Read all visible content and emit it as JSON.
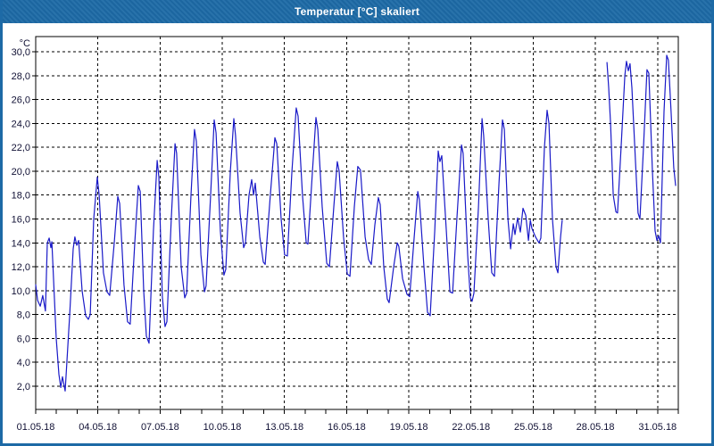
{
  "window": {
    "title": "Temperatur [°C] skaliert",
    "titlebar_color": "#1d6aa6",
    "border_color": "#1d6aa6"
  },
  "chart_data": {
    "type": "line",
    "title": "Temperatur [°C] skaliert",
    "y_unit_label": "°C",
    "line_color": "#1a1ac8",
    "grid": true,
    "grid_style": "dashed",
    "ylim": [
      0.06,
      31.27
    ],
    "xlim_days": [
      0,
      31
    ],
    "y_ticks": [
      {
        "label": "30,0",
        "value": 30
      },
      {
        "label": "28,0",
        "value": 28
      },
      {
        "label": "26,0",
        "value": 26
      },
      {
        "label": "24,0",
        "value": 24
      },
      {
        "label": "22,0",
        "value": 22
      },
      {
        "label": "20,0",
        "value": 20
      },
      {
        "label": "18,0",
        "value": 18
      },
      {
        "label": "16,0",
        "value": 16
      },
      {
        "label": "14,0",
        "value": 14
      },
      {
        "label": "12,0",
        "value": 12
      },
      {
        "label": "10,0",
        "value": 10
      },
      {
        "label": "8,0",
        "value": 8
      },
      {
        "label": "6,0",
        "value": 6
      },
      {
        "label": "4,0",
        "value": 4
      },
      {
        "label": "2,0",
        "value": 2
      }
    ],
    "x_ticks": [
      {
        "label": "01.05.18",
        "day": 0
      },
      {
        "label": "04.05.18",
        "day": 3
      },
      {
        "label": "07.05.18",
        "day": 6
      },
      {
        "label": "10.05.18",
        "day": 9
      },
      {
        "label": "13.05.18",
        "day": 12
      },
      {
        "label": "16.05.18",
        "day": 15
      },
      {
        "label": "19.05.18",
        "day": 18
      },
      {
        "label": "22.05.18",
        "day": 21
      },
      {
        "label": "25.05.18",
        "day": 24
      },
      {
        "label": "28.05.18",
        "day": 27
      },
      {
        "label": "31.05.18",
        "day": 30
      }
    ],
    "x_minor_tick_every_days": 1,
    "segments": [
      {
        "points": [
          [
            0.0,
            10.5
          ],
          [
            0.09,
            9.2
          ],
          [
            0.22,
            8.7
          ],
          [
            0.34,
            9.6
          ],
          [
            0.47,
            8.3
          ],
          [
            0.56,
            14.0
          ],
          [
            0.65,
            14.4
          ],
          [
            0.73,
            13.6
          ],
          [
            0.78,
            14.1
          ],
          [
            0.99,
            6.0
          ],
          [
            1.12,
            3.0
          ],
          [
            1.21,
            1.9
          ],
          [
            1.29,
            2.8
          ],
          [
            1.42,
            1.6
          ],
          [
            1.64,
            8.0
          ],
          [
            1.81,
            13.5
          ],
          [
            1.89,
            14.5
          ],
          [
            1.98,
            13.8
          ],
          [
            2.07,
            14.2
          ],
          [
            2.24,
            10.0
          ],
          [
            2.41,
            7.9
          ],
          [
            2.54,
            7.6
          ],
          [
            2.63,
            8.0
          ],
          [
            2.8,
            16.0
          ],
          [
            2.97,
            19.5
          ],
          [
            3.06,
            18.0
          ],
          [
            3.27,
            11.5
          ],
          [
            3.44,
            9.9
          ],
          [
            3.57,
            9.6
          ],
          [
            3.79,
            14.0
          ],
          [
            3.96,
            17.9
          ],
          [
            4.05,
            17.3
          ],
          [
            4.26,
            10.5
          ],
          [
            4.43,
            7.4
          ],
          [
            4.56,
            7.2
          ],
          [
            4.78,
            14.0
          ],
          [
            4.95,
            18.8
          ],
          [
            5.04,
            18.3
          ],
          [
            5.21,
            10.0
          ],
          [
            5.34,
            6.2
          ],
          [
            5.47,
            5.6
          ],
          [
            5.68,
            15.0
          ],
          [
            5.86,
            20.9
          ],
          [
            5.94,
            19.5
          ],
          [
            6.11,
            9.5
          ],
          [
            6.24,
            7.0
          ],
          [
            6.33,
            7.4
          ],
          [
            6.54,
            16.0
          ],
          [
            6.72,
            22.3
          ],
          [
            6.8,
            21.5
          ],
          [
            7.02,
            12.0
          ],
          [
            7.19,
            9.4
          ],
          [
            7.28,
            9.8
          ],
          [
            7.49,
            18.0
          ],
          [
            7.66,
            23.5
          ],
          [
            7.75,
            22.5
          ],
          [
            7.97,
            13.0
          ],
          [
            8.14,
            9.9
          ],
          [
            8.22,
            10.4
          ],
          [
            8.44,
            18.0
          ],
          [
            8.61,
            24.3
          ],
          [
            8.7,
            23.2
          ],
          [
            8.91,
            15.0
          ],
          [
            9.08,
            11.3
          ],
          [
            9.17,
            11.8
          ],
          [
            9.39,
            20.0
          ],
          [
            9.56,
            24.4
          ],
          [
            9.64,
            23.0
          ],
          [
            9.86,
            16.5
          ],
          [
            10.03,
            13.6
          ],
          [
            10.12,
            14.0
          ],
          [
            10.29,
            18.0
          ],
          [
            10.42,
            19.3
          ],
          [
            10.51,
            18.0
          ],
          [
            10.59,
            19.0
          ],
          [
            10.81,
            14.5
          ],
          [
            10.98,
            12.4
          ],
          [
            11.07,
            12.2
          ],
          [
            11.32,
            18.0
          ],
          [
            11.54,
            22.8
          ],
          [
            11.63,
            22.3
          ],
          [
            11.84,
            16.0
          ],
          [
            12.01,
            13.0
          ],
          [
            12.14,
            12.9
          ],
          [
            12.36,
            20.0
          ],
          [
            12.57,
            25.3
          ],
          [
            12.66,
            24.6
          ],
          [
            12.87,
            18.0
          ],
          [
            13.05,
            14.0
          ],
          [
            13.13,
            13.9
          ],
          [
            13.35,
            20.0
          ],
          [
            13.52,
            24.5
          ],
          [
            13.61,
            23.5
          ],
          [
            13.82,
            17.0
          ],
          [
            14.04,
            12.3
          ],
          [
            14.17,
            12.0
          ],
          [
            14.38,
            17.0
          ],
          [
            14.55,
            20.8
          ],
          [
            14.64,
            20.0
          ],
          [
            14.85,
            14.5
          ],
          [
            15.03,
            11.4
          ],
          [
            15.16,
            11.2
          ],
          [
            15.37,
            17.0
          ],
          [
            15.54,
            20.4
          ],
          [
            15.67,
            20.1
          ],
          [
            15.89,
            14.5
          ],
          [
            16.06,
            12.6
          ],
          [
            16.19,
            12.2
          ],
          [
            16.36,
            15.5
          ],
          [
            16.53,
            17.8
          ],
          [
            16.62,
            17.2
          ],
          [
            16.79,
            12.0
          ],
          [
            16.96,
            9.3
          ],
          [
            17.05,
            9.0
          ],
          [
            17.27,
            12.0
          ],
          [
            17.44,
            14.0
          ],
          [
            17.52,
            13.7
          ],
          [
            17.7,
            11.0
          ],
          [
            17.91,
            9.7
          ],
          [
            18.04,
            9.5
          ],
          [
            18.26,
            14.5
          ],
          [
            18.43,
            18.3
          ],
          [
            18.51,
            17.6
          ],
          [
            18.73,
            12.0
          ],
          [
            18.9,
            8.2
          ],
          [
            19.03,
            7.9
          ],
          [
            19.25,
            15.0
          ],
          [
            19.42,
            21.7
          ],
          [
            19.5,
            20.8
          ],
          [
            19.59,
            21.3
          ],
          [
            19.81,
            15.0
          ],
          [
            19.98,
            9.9
          ],
          [
            20.11,
            9.8
          ],
          [
            20.32,
            16.0
          ],
          [
            20.54,
            22.2
          ],
          [
            20.62,
            21.5
          ],
          [
            20.84,
            13.0
          ],
          [
            20.97,
            9.4
          ],
          [
            21.05,
            9.1
          ],
          [
            21.14,
            9.8
          ],
          [
            21.36,
            17.0
          ],
          [
            21.53,
            24.4
          ],
          [
            21.61,
            23.0
          ],
          [
            21.83,
            16.0
          ],
          [
            22.0,
            11.5
          ],
          [
            22.13,
            11.2
          ],
          [
            22.35,
            19.0
          ],
          [
            22.52,
            24.3
          ],
          [
            22.61,
            23.5
          ],
          [
            22.78,
            16.0
          ],
          [
            22.91,
            13.5
          ],
          [
            23.04,
            15.6
          ],
          [
            23.12,
            14.7
          ],
          [
            23.25,
            16.1
          ],
          [
            23.38,
            14.9
          ],
          [
            23.51,
            16.9
          ],
          [
            23.64,
            16.3
          ],
          [
            23.77,
            14.2
          ],
          [
            23.86,
            15.9
          ],
          [
            23.94,
            15.2
          ],
          [
            24.11,
            14.5
          ],
          [
            24.28,
            14.0
          ],
          [
            24.37,
            14.4
          ],
          [
            24.54,
            22.0
          ],
          [
            24.67,
            25.1
          ],
          [
            24.76,
            24.0
          ],
          [
            24.93,
            16.0
          ],
          [
            25.1,
            12.0
          ],
          [
            25.19,
            11.5
          ],
          [
            25.32,
            14.5
          ],
          [
            25.4,
            15.9
          ]
        ]
      },
      {
        "points": [
          [
            27.56,
            29.1
          ],
          [
            27.64,
            27.0
          ],
          [
            27.73,
            24.0
          ],
          [
            27.86,
            18.0
          ],
          [
            27.99,
            16.6
          ],
          [
            28.07,
            16.5
          ],
          [
            28.24,
            22.0
          ],
          [
            28.42,
            28.0
          ],
          [
            28.5,
            29.2
          ],
          [
            28.59,
            28.4
          ],
          [
            28.67,
            29.0
          ],
          [
            28.76,
            27.0
          ],
          [
            28.93,
            21.0
          ],
          [
            29.06,
            16.5
          ],
          [
            29.15,
            16.0
          ],
          [
            29.32,
            22.0
          ],
          [
            29.49,
            28.5
          ],
          [
            29.58,
            28.2
          ],
          [
            29.75,
            20.0
          ],
          [
            29.88,
            15.0
          ],
          [
            29.97,
            14.2
          ],
          [
            30.05,
            14.6
          ],
          [
            30.14,
            14.0
          ],
          [
            30.31,
            25.0
          ],
          [
            30.44,
            29.7
          ],
          [
            30.52,
            29.3
          ],
          [
            30.65,
            25.0
          ],
          [
            30.78,
            20.3
          ],
          [
            30.87,
            18.8
          ]
        ]
      }
    ]
  }
}
